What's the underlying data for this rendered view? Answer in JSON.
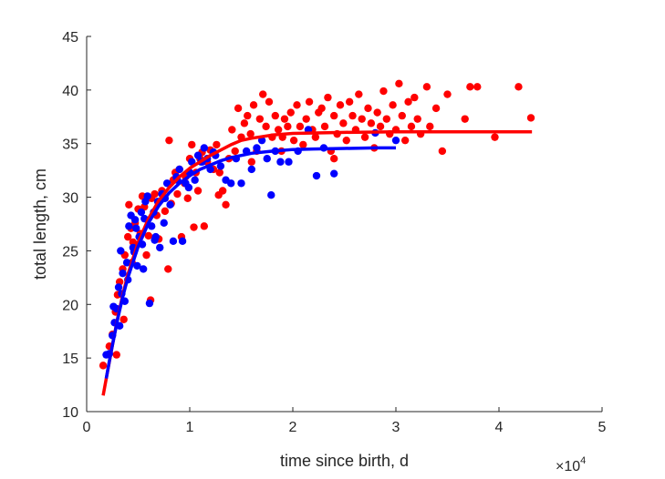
{
  "chart_data": {
    "type": "scatter",
    "title": "",
    "xlabel": "time since birth, d",
    "ylabel": "total length, cm",
    "xlim": [
      0,
      50000
    ],
    "ylim": [
      10,
      45
    ],
    "x_tick_labels": [
      "0",
      "1",
      "2",
      "3",
      "4",
      "5"
    ],
    "x_tick_values": [
      0,
      10000,
      20000,
      30000,
      40000,
      50000
    ],
    "x_exponent_label": "×10",
    "x_exponent_power": "4",
    "y_tick_labels": [
      "10",
      "15",
      "20",
      "25",
      "30",
      "35",
      "40",
      "45"
    ],
    "y_tick_values": [
      10,
      15,
      20,
      25,
      30,
      35,
      40,
      45
    ],
    "grid": false,
    "legend": "none",
    "series": [
      {
        "color": "#ff0000",
        "points": [
          [
            1600,
            14.3
          ],
          [
            2200,
            16.1
          ],
          [
            2500,
            17.2
          ],
          [
            2800,
            19.3
          ],
          [
            3000,
            20.9
          ],
          [
            3200,
            22.1
          ],
          [
            3500,
            23.3
          ],
          [
            3700,
            24.6
          ],
          [
            4000,
            26.3
          ],
          [
            4100,
            29.3
          ],
          [
            4300,
            27.1
          ],
          [
            4500,
            25.8
          ],
          [
            4700,
            27.6
          ],
          [
            5000,
            28.9
          ],
          [
            5200,
            26.6
          ],
          [
            5400,
            30.1
          ],
          [
            5600,
            29.1
          ],
          [
            6000,
            26.4
          ],
          [
            6200,
            20.4
          ],
          [
            6300,
            29.9
          ],
          [
            6600,
            30.3
          ],
          [
            7000,
            26.1
          ],
          [
            7300,
            30.6
          ],
          [
            7600,
            28.7
          ],
          [
            7900,
            23.3
          ],
          [
            8000,
            35.3
          ],
          [
            8200,
            29.4
          ],
          [
            8400,
            31.6
          ],
          [
            8600,
            32.3
          ],
          [
            8800,
            30.3
          ],
          [
            9000,
            32.6
          ],
          [
            9200,
            26.3
          ],
          [
            9500,
            31.3
          ],
          [
            9800,
            29.9
          ],
          [
            10000,
            33.6
          ],
          [
            10200,
            34.9
          ],
          [
            10400,
            27.2
          ],
          [
            10600,
            32.3
          ],
          [
            10800,
            30.6
          ],
          [
            11000,
            33.6
          ],
          [
            11200,
            34.2
          ],
          [
            11400,
            27.3
          ],
          [
            11700,
            33.3
          ],
          [
            12000,
            34.4
          ],
          [
            12300,
            32.6
          ],
          [
            12600,
            34.9
          ],
          [
            12900,
            32.3
          ],
          [
            13200,
            30.6
          ],
          [
            13500,
            29.3
          ],
          [
            13800,
            33.6
          ],
          [
            14100,
            36.3
          ],
          [
            14400,
            34.3
          ],
          [
            14700,
            38.3
          ],
          [
            15000,
            35.6
          ],
          [
            15300,
            36.9
          ],
          [
            15600,
            37.6
          ],
          [
            15900,
            35.9
          ],
          [
            16200,
            38.6
          ],
          [
            16500,
            34.3
          ],
          [
            16800,
            37.3
          ],
          [
            17100,
            39.6
          ],
          [
            17400,
            36.6
          ],
          [
            17700,
            38.9
          ],
          [
            18000,
            35.6
          ],
          [
            18300,
            37.6
          ],
          [
            18600,
            36.3
          ],
          [
            18900,
            34.3
          ],
          [
            19200,
            37.3
          ],
          [
            19500,
            36.6
          ],
          [
            19800,
            37.9
          ],
          [
            20100,
            35.3
          ],
          [
            20400,
            38.6
          ],
          [
            20700,
            36.6
          ],
          [
            21000,
            34.9
          ],
          [
            21300,
            37.3
          ],
          [
            21600,
            38.9
          ],
          [
            21900,
            36.3
          ],
          [
            22200,
            35.6
          ],
          [
            22500,
            37.9
          ],
          [
            22800,
            38.3
          ],
          [
            23100,
            36.6
          ],
          [
            23400,
            39.3
          ],
          [
            23700,
            34.3
          ],
          [
            24000,
            37.6
          ],
          [
            24300,
            35.9
          ],
          [
            24600,
            38.6
          ],
          [
            24900,
            36.9
          ],
          [
            25200,
            35.3
          ],
          [
            25500,
            38.9
          ],
          [
            25800,
            37.6
          ],
          [
            26100,
            36.3
          ],
          [
            26400,
            39.6
          ],
          [
            26700,
            37.3
          ],
          [
            27000,
            35.6
          ],
          [
            27300,
            38.3
          ],
          [
            27600,
            36.9
          ],
          [
            27900,
            34.6
          ],
          [
            28200,
            37.9
          ],
          [
            28500,
            36.6
          ],
          [
            28800,
            39.9
          ],
          [
            29100,
            37.3
          ],
          [
            29400,
            35.9
          ],
          [
            29700,
            38.6
          ],
          [
            30000,
            36.3
          ],
          [
            30300,
            40.6
          ],
          [
            30600,
            37.6
          ],
          [
            30900,
            35.3
          ],
          [
            31200,
            38.9
          ],
          [
            31500,
            36.6
          ],
          [
            31800,
            39.3
          ],
          [
            32100,
            37.3
          ],
          [
            32400,
            35.9
          ],
          [
            33000,
            40.3
          ],
          [
            33300,
            36.6
          ],
          [
            33900,
            38.3
          ],
          [
            34500,
            34.3
          ],
          [
            35000,
            39.6
          ],
          [
            36700,
            37.3
          ],
          [
            37200,
            40.3
          ],
          [
            37900,
            40.3
          ],
          [
            39600,
            35.6
          ],
          [
            41900,
            40.3
          ],
          [
            43100,
            37.4
          ],
          [
            2900,
            15.3
          ],
          [
            3600,
            18.6
          ],
          [
            4400,
            23.9
          ],
          [
            5800,
            24.6
          ],
          [
            6800,
            28.3
          ],
          [
            9600,
            31.9
          ],
          [
            12800,
            30.2
          ],
          [
            16000,
            33.3
          ],
          [
            19000,
            35.6
          ],
          [
            24000,
            33.6
          ]
        ]
      },
      {
        "color": "#0000ff",
        "points": [
          [
            1900,
            15.3
          ],
          [
            2200,
            15.4
          ],
          [
            2500,
            17.1
          ],
          [
            2700,
            18.3
          ],
          [
            2900,
            19.6
          ],
          [
            3100,
            21.6
          ],
          [
            3300,
            25.0
          ],
          [
            3500,
            22.9
          ],
          [
            3700,
            20.3
          ],
          [
            3900,
            23.9
          ],
          [
            4100,
            27.3
          ],
          [
            4300,
            28.3
          ],
          [
            4500,
            25.3
          ],
          [
            4700,
            27.9
          ],
          [
            4900,
            23.6
          ],
          [
            5100,
            26.3
          ],
          [
            5300,
            28.6
          ],
          [
            5500,
            23.3
          ],
          [
            5700,
            29.6
          ],
          [
            5900,
            30.1
          ],
          [
            6100,
            20.1
          ],
          [
            6300,
            27.3
          ],
          [
            6500,
            28.6
          ],
          [
            6700,
            26.3
          ],
          [
            6900,
            29.6
          ],
          [
            7100,
            25.3
          ],
          [
            7300,
            30.3
          ],
          [
            7500,
            27.6
          ],
          [
            7800,
            31.3
          ],
          [
            8100,
            29.3
          ],
          [
            8400,
            25.9
          ],
          [
            8700,
            31.9
          ],
          [
            9000,
            32.6
          ],
          [
            9300,
            25.9
          ],
          [
            9600,
            31.3
          ],
          [
            9900,
            30.9
          ],
          [
            10200,
            33.3
          ],
          [
            10500,
            31.6
          ],
          [
            10800,
            33.9
          ],
          [
            11100,
            33.3
          ],
          [
            11400,
            34.6
          ],
          [
            11700,
            33.6
          ],
          [
            12000,
            32.6
          ],
          [
            12500,
            33.9
          ],
          [
            13000,
            32.9
          ],
          [
            13500,
            31.6
          ],
          [
            14000,
            31.3
          ],
          [
            14500,
            33.6
          ],
          [
            15000,
            31.3
          ],
          [
            15500,
            34.3
          ],
          [
            16000,
            32.6
          ],
          [
            16500,
            34.6
          ],
          [
            17000,
            35.3
          ],
          [
            17500,
            33.6
          ],
          [
            17900,
            30.2
          ],
          [
            18300,
            34.3
          ],
          [
            18800,
            33.3
          ],
          [
            19600,
            33.3
          ],
          [
            20500,
            34.3
          ],
          [
            21500,
            36.3
          ],
          [
            22300,
            32.0
          ],
          [
            23000,
            34.6
          ],
          [
            24000,
            32.2
          ],
          [
            3200,
            18.0
          ],
          [
            3400,
            21.0
          ],
          [
            4000,
            22.3
          ],
          [
            4600,
            24.9
          ],
          [
            5400,
            25.6
          ],
          [
            6600,
            26.0
          ],
          [
            7600,
            29.9
          ],
          [
            8800,
            31.6
          ],
          [
            10000,
            32.3
          ],
          [
            11200,
            33.3
          ],
          [
            30000,
            35.3
          ],
          [
            28000,
            36.0
          ],
          [
            12300,
            34.2
          ],
          [
            2600,
            19.8
          ],
          [
            4800,
            27.1
          ],
          [
            5600,
            28.0
          ]
        ]
      }
    ],
    "fit_curves": [
      {
        "color": "#ff0000",
        "x": [
          1600,
          2000,
          2500,
          3000,
          3500,
          4000,
          5000,
          6000,
          7000,
          8000,
          9000,
          10000,
          11000,
          12000,
          13000,
          14000,
          15000,
          16000,
          18000,
          20000,
          25000,
          30000,
          35000,
          40000,
          43200
        ],
        "y": [
          11.5,
          13.6,
          16.2,
          18.7,
          20.9,
          22.8,
          25.8,
          28.0,
          29.7,
          30.9,
          31.9,
          32.7,
          33.3,
          33.9,
          34.4,
          34.9,
          35.3,
          35.5,
          35.8,
          35.95,
          36.05,
          36.1,
          36.1,
          36.1,
          36.1
        ]
      },
      {
        "color": "#0000ff",
        "x": [
          1900,
          2200,
          2500,
          3000,
          3500,
          4000,
          5000,
          6000,
          7000,
          8000,
          9000,
          10000,
          11000,
          12000,
          13000,
          14000,
          15000,
          16000,
          18000,
          20000,
          22000,
          25000,
          28000,
          30000
        ],
        "y": [
          13.1,
          14.7,
          16.2,
          18.6,
          20.7,
          22.5,
          25.4,
          27.6,
          29.2,
          30.4,
          31.3,
          32.0,
          32.6,
          33.0,
          33.4,
          33.7,
          33.9,
          34.1,
          34.3,
          34.45,
          34.5,
          34.55,
          34.6,
          34.6
        ]
      }
    ]
  }
}
